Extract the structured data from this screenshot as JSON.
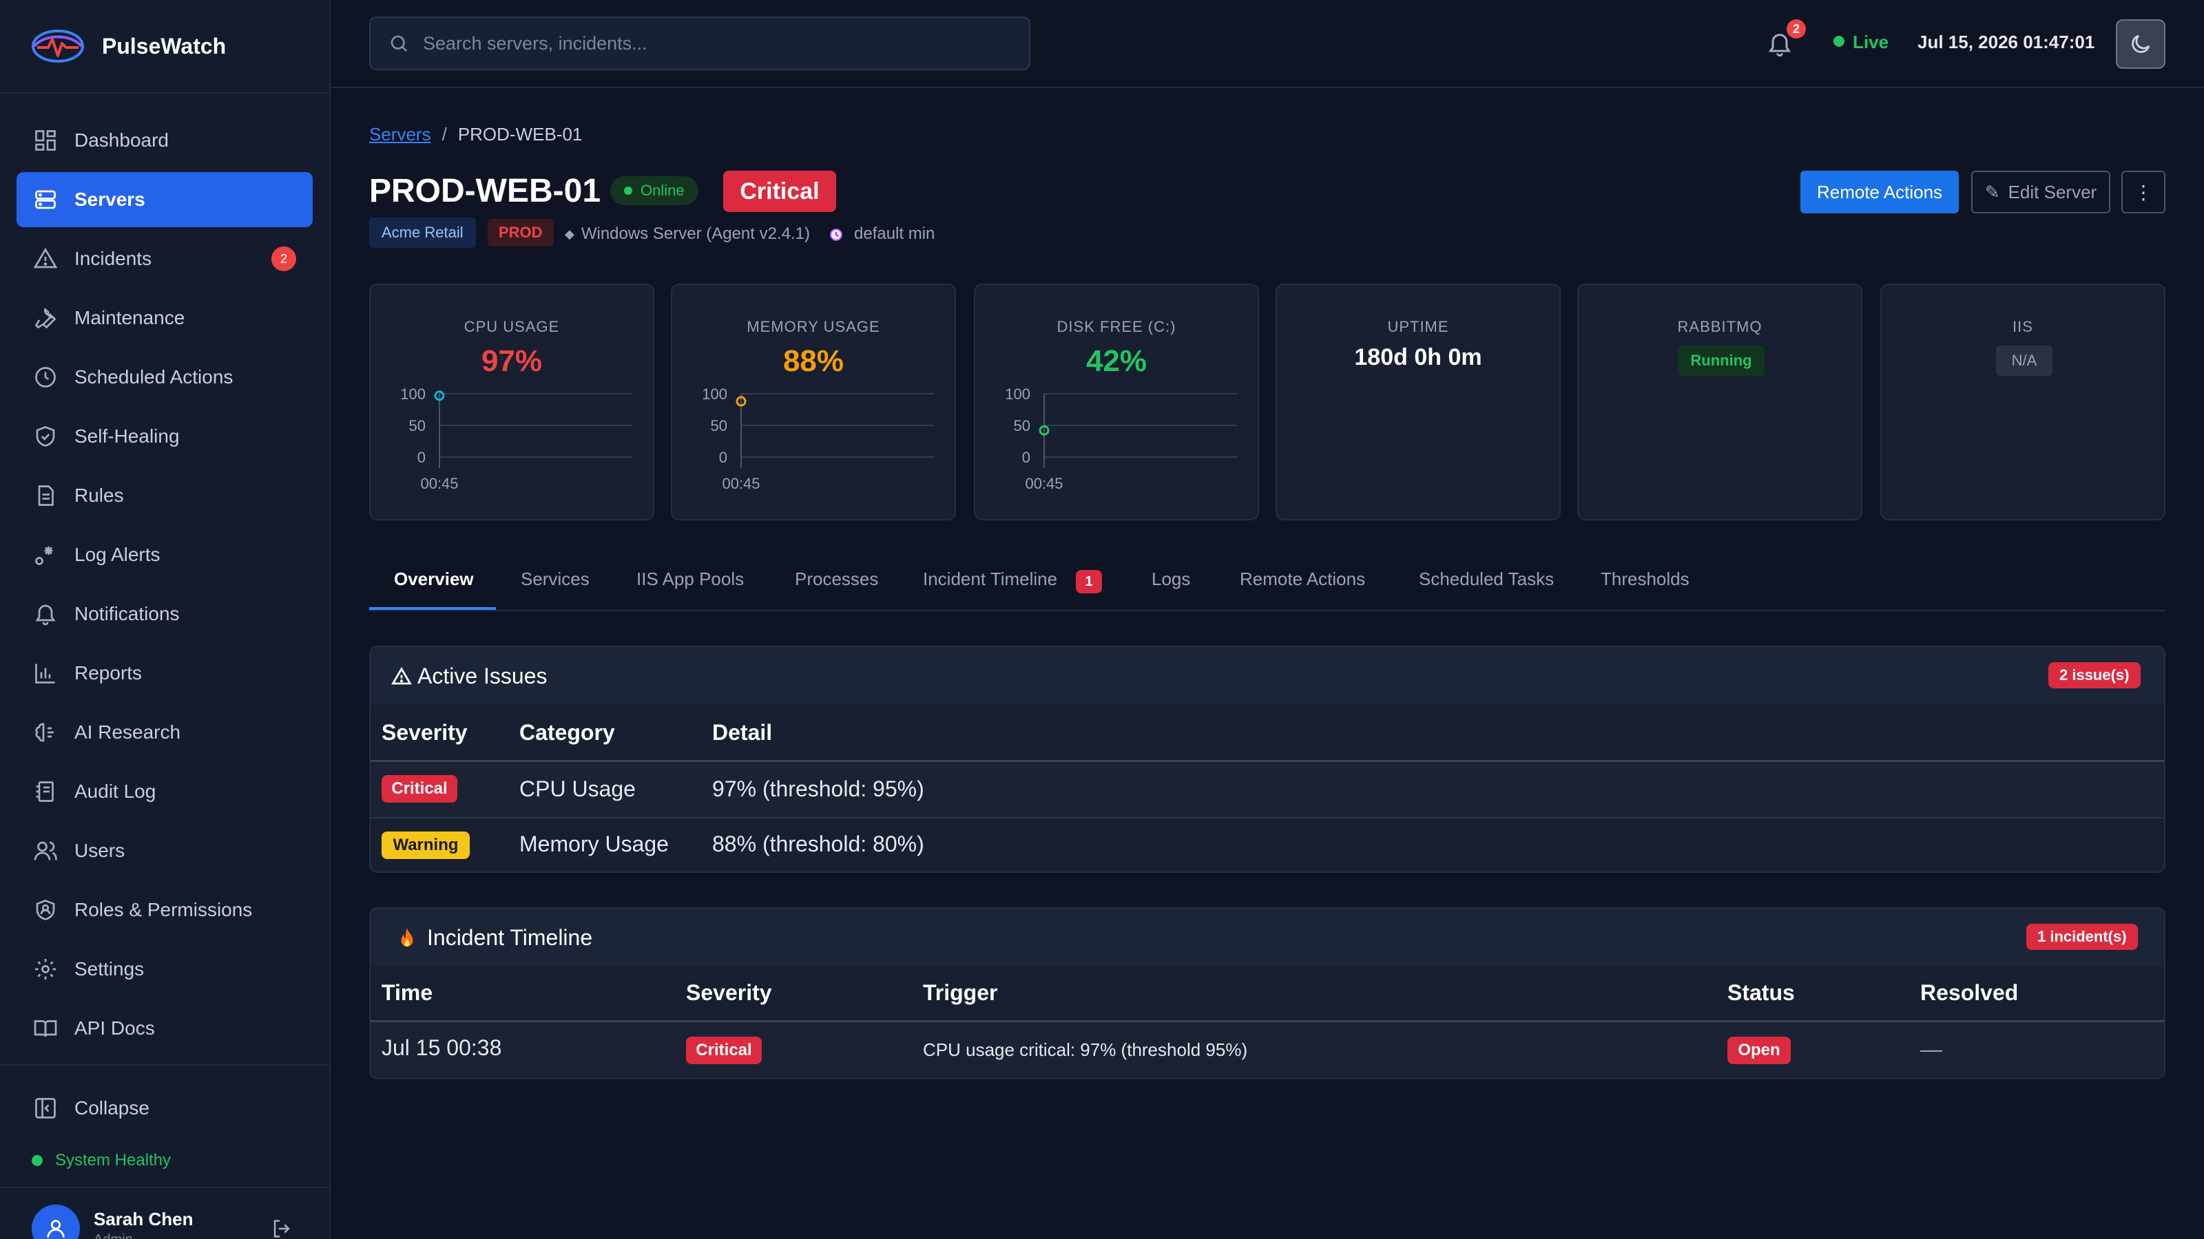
{
  "app": {
    "name": "PulseWatch"
  },
  "sidebar": {
    "items": [
      {
        "label": "Dashboard",
        "icon": "dashboard-icon"
      },
      {
        "label": "Servers",
        "icon": "server-icon",
        "active": true
      },
      {
        "label": "Incidents",
        "icon": "alert-triangle-icon",
        "badge": "2"
      },
      {
        "label": "Maintenance",
        "icon": "wrench-icon"
      },
      {
        "label": "Scheduled Actions",
        "icon": "clock-icon"
      },
      {
        "label": "Self-Healing",
        "icon": "shield-check-icon"
      },
      {
        "label": "Rules",
        "icon": "document-icon"
      },
      {
        "label": "Log Alerts",
        "icon": "log-alert-icon"
      },
      {
        "label": "Notifications",
        "icon": "bell-icon"
      },
      {
        "label": "Reports",
        "icon": "bar-chart-icon"
      },
      {
        "label": "AI Research",
        "icon": "brain-icon"
      },
      {
        "label": "Audit Log",
        "icon": "audit-log-icon"
      },
      {
        "label": "Users",
        "icon": "users-icon"
      },
      {
        "label": "Roles & Permissions",
        "icon": "shield-user-icon"
      },
      {
        "label": "Settings",
        "icon": "gear-icon"
      },
      {
        "label": "API Docs",
        "icon": "book-icon"
      }
    ],
    "collapse_label": "Collapse",
    "system_status": "System Healthy",
    "user": {
      "name": "Sarah Chen",
      "role": "Admin"
    }
  },
  "topbar": {
    "search_placeholder": "Search servers, incidents...",
    "notification_count": "2",
    "live_label": "Live",
    "datetime": "Jul 15, 2026 01:47:01"
  },
  "breadcrumb": {
    "parent": "Servers",
    "separator": "/",
    "current": "PROD-WEB-01"
  },
  "server": {
    "name": "PROD-WEB-01",
    "status": "Online",
    "severity": "Critical",
    "customer": "Acme Retail",
    "environment": "PROD",
    "os": "Windows Server (Agent v2.4.1)",
    "profile": "default min",
    "colors": {
      "critical": "#dc2b3f",
      "warning": "#f5c518",
      "ok": "#22c55e",
      "accent": "#1a73e8"
    }
  },
  "actions": {
    "remote": "Remote Actions",
    "edit": "Edit Server",
    "more": "⋮"
  },
  "metrics": [
    {
      "title": "CPU USAGE",
      "value": "97%",
      "color": "#ef4444",
      "point": 97,
      "point_color": "#06b6d4",
      "y_ticks": [
        "100",
        "50",
        "0"
      ],
      "x_tick": "00:45"
    },
    {
      "title": "MEMORY USAGE",
      "value": "88%",
      "color": "#f59e0b",
      "point": 88,
      "point_color": "#f59e0b",
      "y_ticks": [
        "100",
        "50",
        "0"
      ],
      "x_tick": "00:45"
    },
    {
      "title": "DISK FREE (C:)",
      "value": "42%",
      "color": "#22c55e",
      "point": 42,
      "point_color": "#22c55e",
      "y_ticks": [
        "100",
        "50",
        "0"
      ],
      "x_tick": "00:45"
    },
    {
      "title": "UPTIME",
      "value": "180d 0h 0m"
    },
    {
      "title": "RABBITMQ",
      "badge": "Running"
    },
    {
      "title": "IIS",
      "badge": "N/A"
    }
  ],
  "tabs": [
    {
      "label": "Overview",
      "active": true
    },
    {
      "label": "Services"
    },
    {
      "label": "IIS App Pools"
    },
    {
      "label": "Processes"
    },
    {
      "label": "Incident Timeline",
      "badge": "1"
    },
    {
      "label": "Logs"
    },
    {
      "label": "Remote Actions"
    },
    {
      "label": "Scheduled Tasks"
    },
    {
      "label": "Thresholds"
    }
  ],
  "active_issues": {
    "title": "Active Issues",
    "count_label": "2 issue(s)",
    "columns": [
      "Severity",
      "Category",
      "Detail"
    ],
    "rows": [
      {
        "severity": "Critical",
        "category": "CPU Usage",
        "detail": "97% (threshold: 95%)"
      },
      {
        "severity": "Warning",
        "category": "Memory Usage",
        "detail": "88% (threshold: 80%)"
      }
    ]
  },
  "incident_timeline": {
    "title": "Incident Timeline",
    "count_label": "1 incident(s)",
    "columns": [
      "Time",
      "Severity",
      "Trigger",
      "Status",
      "Resolved"
    ],
    "rows": [
      {
        "time": "Jul 15 00:38",
        "severity": "Critical",
        "trigger": "CPU usage critical: 97% (threshold 95%)",
        "status": "Open",
        "resolved": "—"
      }
    ]
  }
}
